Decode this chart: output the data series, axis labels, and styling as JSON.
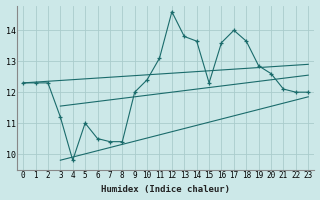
{
  "xlabel": "Humidex (Indice chaleur)",
  "bg_color": "#cce8e8",
  "grid_color": "#aacccc",
  "line_color": "#1a6b6b",
  "xlim": [
    -0.5,
    23.5
  ],
  "ylim": [
    9.5,
    14.8
  ],
  "xticks": [
    0,
    1,
    2,
    3,
    4,
    5,
    6,
    7,
    8,
    9,
    10,
    11,
    12,
    13,
    14,
    15,
    16,
    17,
    18,
    19,
    20,
    21,
    22,
    23
  ],
  "yticks": [
    10,
    11,
    12,
    13,
    14
  ],
  "main_x": [
    0,
    1,
    2,
    3,
    4,
    5,
    6,
    7,
    8,
    9,
    10,
    11,
    12,
    13,
    14,
    15,
    16,
    17,
    18,
    19,
    20,
    21,
    22,
    23
  ],
  "main_y": [
    12.3,
    12.3,
    12.3,
    11.2,
    9.8,
    11.0,
    10.5,
    10.4,
    10.4,
    12.0,
    12.4,
    13.1,
    14.6,
    13.8,
    13.65,
    12.3,
    13.6,
    14.0,
    13.65,
    12.85,
    12.6,
    12.1,
    12.0,
    12.0
  ],
  "line1_x": [
    3,
    23
  ],
  "line1_y": [
    9.8,
    11.85
  ],
  "line2_x": [
    3,
    23
  ],
  "line2_y": [
    11.55,
    12.55
  ],
  "line3_x": [
    0,
    23
  ],
  "line3_y": [
    12.3,
    12.9
  ],
  "figwidth": 3.2,
  "figheight": 2.0,
  "dpi": 100
}
